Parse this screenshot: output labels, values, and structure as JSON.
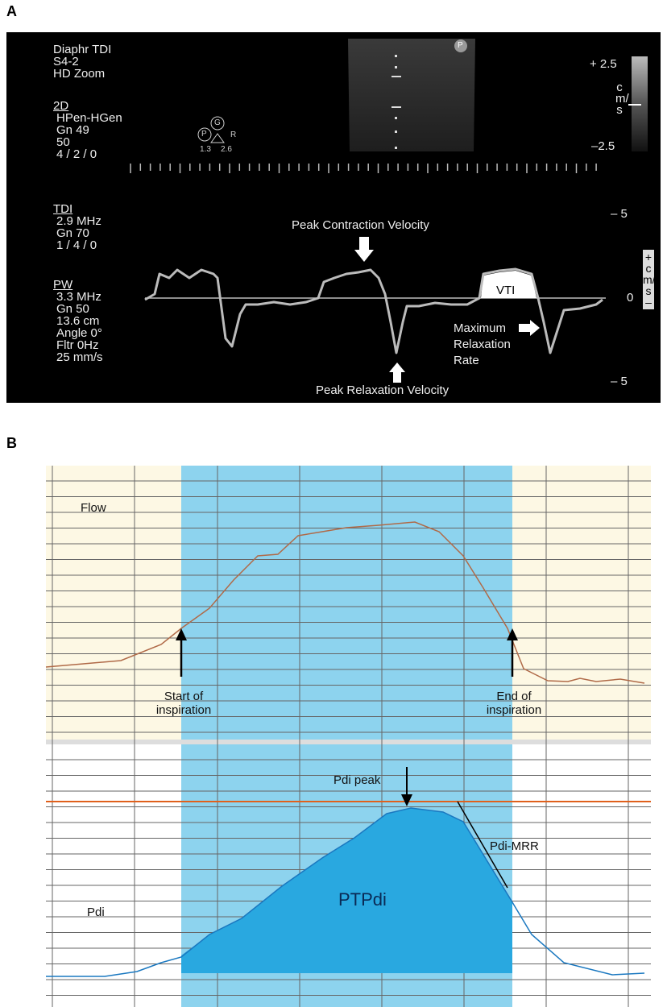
{
  "panel_a": {
    "label": "A",
    "header": [
      "Diaphr TDI",
      "S4-2",
      "HD Zoom"
    ],
    "section_2d": {
      "title": "2D",
      "lines": [
        "HPen-HGen",
        "Gn 49",
        "50",
        "4 / 2 / 0"
      ]
    },
    "section_tdi": {
      "title": "TDI",
      "lines": [
        "2.9 MHz",
        "Gn 70",
        "1 / 4 / 0"
      ]
    },
    "section_pw": {
      "title": "PW",
      "lines": [
        "3.3 MHz",
        "Gn 50",
        "13.6 cm",
        "Angle 0°",
        "Fltr 0Hz",
        "25 mm/s"
      ]
    },
    "icons": {
      "probe": "P",
      "gain": "G",
      "focus": "P",
      "right": "R",
      "left_value": "1.3",
      "right_value": "2.6"
    },
    "color_scale": {
      "top": "+ 2.5",
      "unit": "cm/s",
      "bottom": "–2.5"
    },
    "velocity_scale": {
      "top": "–  5",
      "zero": "0",
      "bottom": "–  5",
      "unit": "+cm/s–"
    },
    "annotations": {
      "peak_contraction": "Peak Contraction Velocity",
      "peak_relaxation": "Peak Relaxation Velocity",
      "mrr": "Maximum Relaxation Rate",
      "vti": "VTI"
    }
  },
  "panel_b": {
    "label": "B",
    "flow": {
      "label": "Flow",
      "start": "Start of inspiration",
      "end": "End of inspiration"
    },
    "pdi": {
      "label": "Pdi",
      "peak": "Pdi peak",
      "mrr": "Pdi-MRR",
      "area": "PTPdi"
    }
  }
}
